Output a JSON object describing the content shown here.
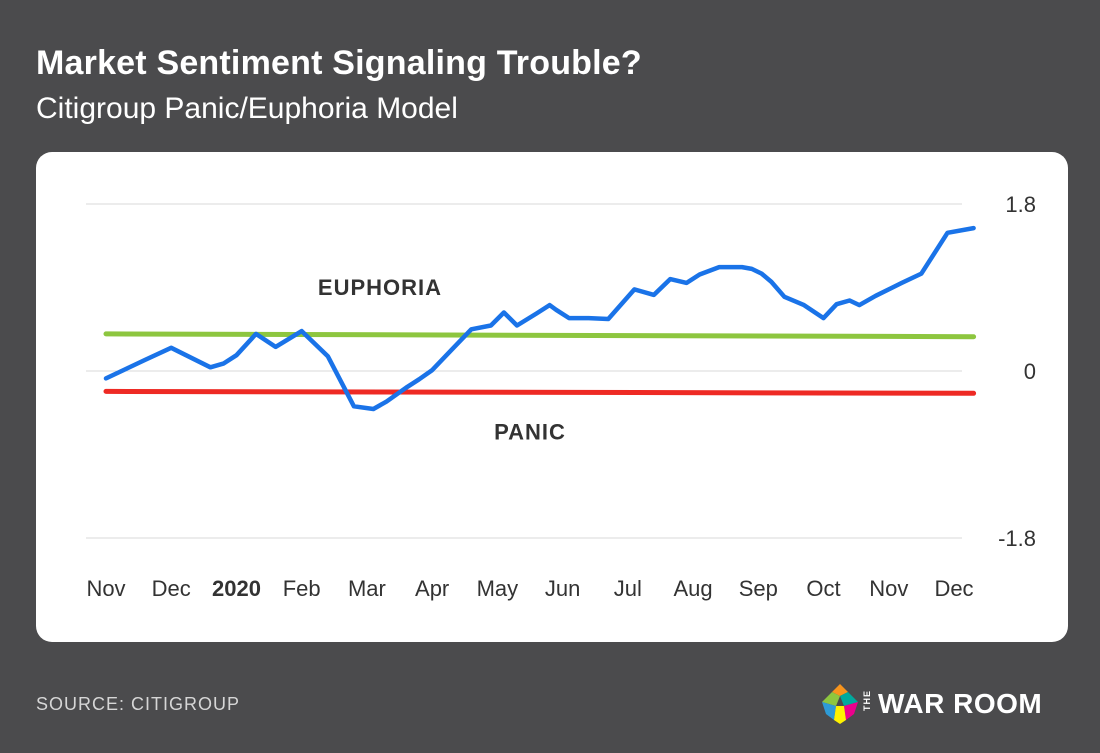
{
  "header": {
    "title": "Market Sentiment Signaling Trouble?",
    "subtitle": "Citigroup Panic/Euphoria Model"
  },
  "footer": {
    "source": "SOURCE: CITIGROUP",
    "brand_prefix": "THE",
    "brand_name": "WAR ROOM"
  },
  "chart_data": {
    "type": "line",
    "title": "Market Sentiment Signaling Trouble?",
    "subtitle": "Citigroup Panic/Euphoria Model",
    "xlabel": "",
    "ylabel": "",
    "ylim": [
      -1.8,
      1.8
    ],
    "yticks": [
      1.8,
      0,
      -1.8
    ],
    "ytick_labels": [
      "1.8",
      "0",
      "-1.8"
    ],
    "grid": true,
    "xlim": [
      0,
      13.5
    ],
    "x_tick_labels": [
      "Nov",
      "Dec",
      "2020",
      "Feb",
      "Mar",
      "Apr",
      "May",
      "Jun",
      "Jul",
      "Aug",
      "Sep",
      "Oct",
      "Nov",
      "Dec"
    ],
    "x_tick_bold": [
      "2020"
    ],
    "annotations": [
      {
        "text": "EUPHORIA",
        "x": 4.2,
        "y": 0.82
      },
      {
        "text": "PANIC",
        "x": 6.5,
        "y": -0.74
      }
    ],
    "series": [
      {
        "name": "Panic/Euphoria Model",
        "color": "#1a73e8",
        "x": [
          0.0,
          0.3,
          0.6,
          1.0,
          1.4,
          1.6,
          1.8,
          2.0,
          2.3,
          2.6,
          3.0,
          3.4,
          3.8,
          4.1,
          4.3,
          4.6,
          4.8,
          5.0,
          5.3,
          5.6,
          5.9,
          6.1,
          6.3,
          6.6,
          6.8,
          6.9,
          7.1,
          7.4,
          7.7,
          8.1,
          8.4,
          8.65,
          8.9,
          9.1,
          9.4,
          9.55,
          9.75,
          9.9,
          10.05,
          10.2,
          10.4,
          10.7,
          11.0,
          11.2,
          11.4,
          11.55,
          11.8,
          12.2,
          12.5,
          12.9,
          13.3
        ],
        "values": [
          -0.08,
          0.02,
          0.12,
          0.25,
          0.11,
          0.04,
          0.08,
          0.17,
          0.4,
          0.26,
          0.43,
          0.16,
          -0.38,
          -0.41,
          -0.33,
          -0.18,
          -0.09,
          0.01,
          0.23,
          0.45,
          0.49,
          0.63,
          0.49,
          0.62,
          0.71,
          0.66,
          0.57,
          0.57,
          0.56,
          0.88,
          0.82,
          0.99,
          0.95,
          1.04,
          1.12,
          1.12,
          1.12,
          1.1,
          1.05,
          0.96,
          0.8,
          0.71,
          0.57,
          0.72,
          0.76,
          0.71,
          0.81,
          0.95,
          1.05,
          1.49,
          1.54
        ]
      },
      {
        "name": "Euphoria",
        "color": "#8dc63f",
        "x": [
          0.0,
          13.3
        ],
        "values": [
          0.4,
          0.37
        ]
      },
      {
        "name": "Panic",
        "color": "#ee2a24",
        "x": [
          0.0,
          13.3
        ],
        "values": [
          -0.22,
          -0.24
        ]
      }
    ]
  }
}
